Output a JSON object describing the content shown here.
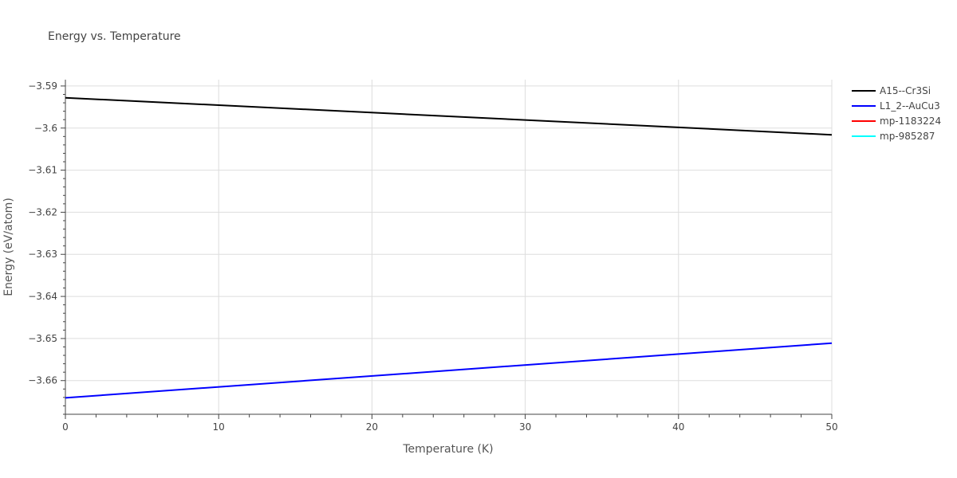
{
  "chart_data": {
    "type": "line",
    "title": "Energy vs. Temperature",
    "xlabel": "Temperature (K)",
    "ylabel": "Energy (eV/atom)",
    "xlim": [
      0,
      50
    ],
    "ylim": [
      -3.668,
      -3.5885
    ],
    "x_ticks": [
      0,
      10,
      20,
      30,
      40,
      50
    ],
    "x_tick_labels": [
      "0",
      "10",
      "20",
      "30",
      "40",
      "50"
    ],
    "y_ticks": [
      -3.59,
      -3.6,
      -3.61,
      -3.62,
      -3.63,
      -3.64,
      -3.65,
      -3.66
    ],
    "y_tick_labels": [
      "−3.59",
      "−3.6",
      "−3.61",
      "−3.62",
      "−3.63",
      "−3.64",
      "−3.65",
      "−3.66"
    ],
    "grid": true,
    "legend_position": "top-right",
    "series": [
      {
        "name": "A15--Cr3Si",
        "color": "#000000",
        "x": [
          0,
          50
        ],
        "y": [
          -3.5928,
          -3.6016
        ]
      },
      {
        "name": "L1_2--AuCu3",
        "color": "#0000ff",
        "x": [
          0,
          50
        ],
        "y": [
          -3.6641,
          -3.6511
        ]
      },
      {
        "name": "mp-1183224",
        "color": "#ff0000",
        "x": [],
        "y": []
      },
      {
        "name": "mp-985287",
        "color": "#00ffff",
        "x": [],
        "y": []
      }
    ]
  }
}
